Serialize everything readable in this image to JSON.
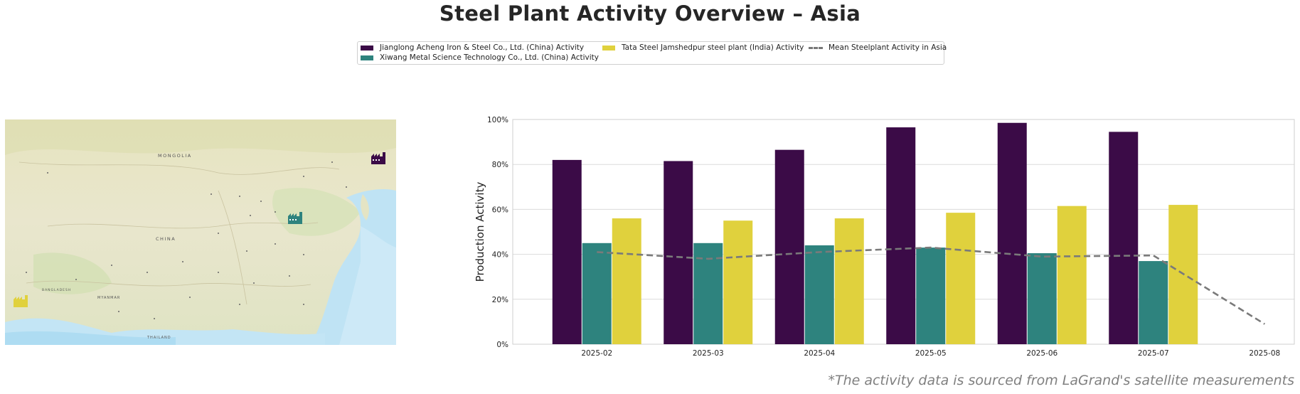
{
  "title": "Steel Plant Activity Overview – Asia",
  "footnote": "*The activity data is sourced from LaGrand's satellite measurements",
  "colors": {
    "jianglong": "#3b0b47",
    "xiwang": "#2e837e",
    "tata": "#e0d13d",
    "mean": "#7a7a7a"
  },
  "legend": {
    "items": [
      {
        "label": "Jianglong Acheng Iron & Steel Co., Ltd. (China) Activity",
        "kind": "bar",
        "color": "#3b0b47"
      },
      {
        "label": "Xiwang Metal Science Technology Co., Ltd. (China) Activity",
        "kind": "bar",
        "color": "#2e837e"
      },
      {
        "label": "Tata Steel Jamshedpur steel plant (India) Activity",
        "kind": "bar",
        "color": "#e0d13d"
      },
      {
        "label": "Mean Steelplant Activity in Asia",
        "kind": "line",
        "color": "#7a7a7a"
      }
    ]
  },
  "map": {
    "labels": [
      "MONGOLIA",
      "CHINA",
      "MYANMAR",
      "THAILAND",
      "BANGLADESH"
    ],
    "icons": [
      "factory-icon-jianglong",
      "factory-icon-xiwang",
      "factory-icon-tata"
    ]
  },
  "chart_data": {
    "type": "bar",
    "categories": [
      "2025-02",
      "2025-03",
      "2025-04",
      "2025-05",
      "2025-06",
      "2025-07",
      "2025-08"
    ],
    "series": [
      {
        "name": "Jianglong Acheng Iron & Steel Co., Ltd. (China) Activity",
        "values": [
          82,
          81.5,
          86.5,
          96.5,
          98.5,
          94.5,
          null
        ]
      },
      {
        "name": "Xiwang Metal Science Technology Co., Ltd. (China) Activity",
        "values": [
          45,
          45,
          44,
          43,
          40.5,
          37,
          null
        ]
      },
      {
        "name": "Tata Steel Jamshedpur steel plant (India) Activity",
        "values": [
          56,
          55,
          56,
          58.5,
          61.5,
          62,
          null
        ]
      }
    ],
    "line": {
      "name": "Mean Steelplant Activity in Asia",
      "values": [
        41,
        38,
        41,
        43,
        39,
        39.5,
        9
      ]
    },
    "ylabel": "Production Activity",
    "yticks": [
      "0%",
      "20%",
      "40%",
      "60%",
      "80%",
      "100%"
    ],
    "ylim": [
      0,
      100
    ],
    "grid": true
  }
}
